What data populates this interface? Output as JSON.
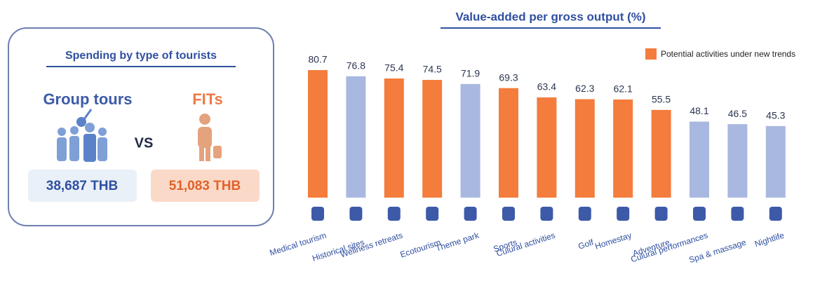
{
  "panel": {
    "title": "Spending by type of tourists",
    "group_label": "Group tours",
    "fit_label": "FITs",
    "vs": "VS",
    "group_value": "38,687 THB",
    "fit_value": "51,083 THB"
  },
  "chart_data": {
    "type": "bar",
    "title": "Value-added per gross output (%)",
    "categories": [
      "Medical tourism",
      "Historical sites",
      "Wellness retreats",
      "Ecotourism",
      "Theme park",
      "Sports",
      "Culural activities",
      "Golf",
      "Homestay",
      "Adventure",
      "Culural performances",
      "Spa & massage",
      "Nightlife"
    ],
    "values": [
      80.7,
      76.8,
      75.4,
      74.5,
      71.9,
      69.3,
      63.4,
      62.3,
      62.1,
      55.5,
      48.1,
      46.5,
      45.3
    ],
    "colors": [
      "#f47c3c",
      "#a9b8e0",
      "#f47c3c",
      "#f47c3c",
      "#a9b8e0",
      "#f47c3c",
      "#f47c3c",
      "#f47c3c",
      "#f47c3c",
      "#f47c3c",
      "#a9b8e0",
      "#a9b8e0",
      "#a9b8e0"
    ],
    "legend": {
      "label": "Potential activities under new trends",
      "color": "#f47c3c"
    }
  }
}
